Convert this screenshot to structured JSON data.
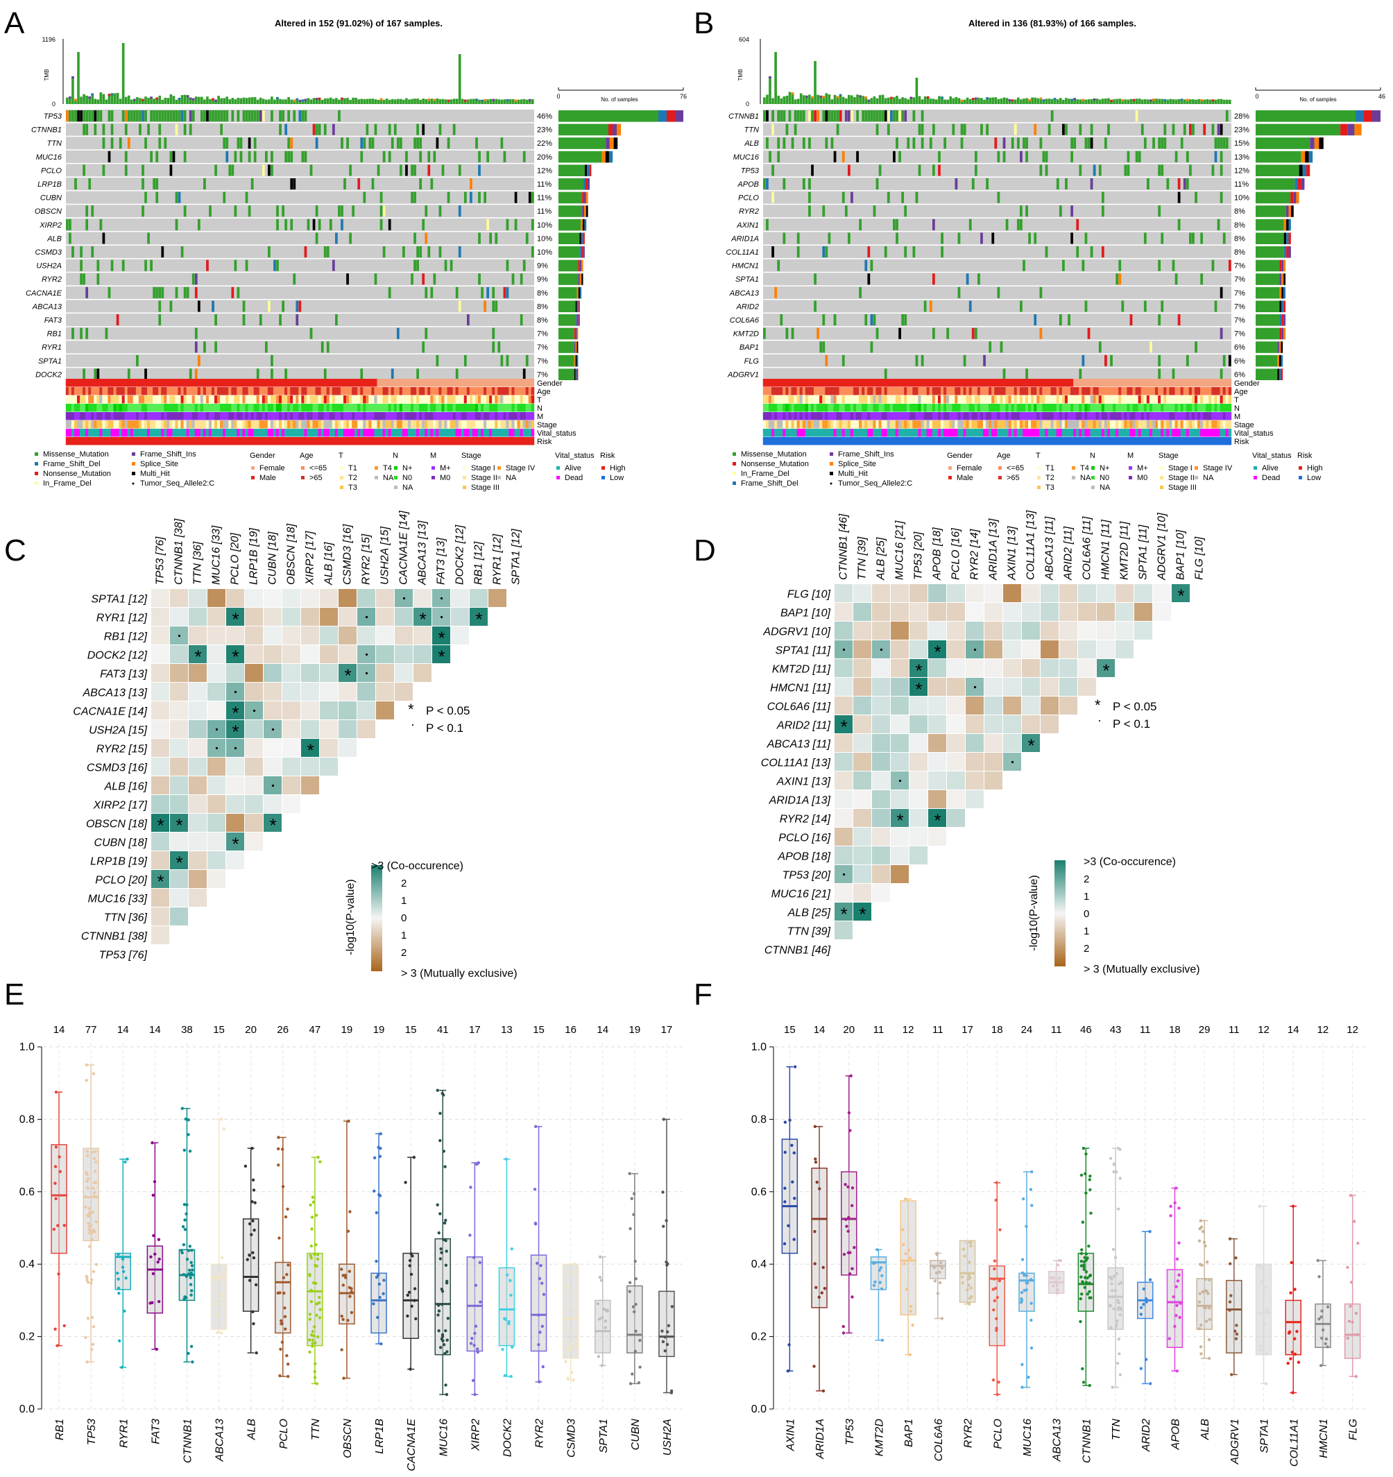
{
  "panels": {
    "A": {
      "letter": "A",
      "title": "Altered in 152 (91.02%) of 167 samples.",
      "tmb_label": "TMB",
      "tmb_max": "1196",
      "tmb_zero": "0",
      "n_samples": 167,
      "bar_axis_label": "No. of samples",
      "bar_axis_min": "0",
      "bar_axis_max": "76",
      "bar_max": 76,
      "genes": [
        {
          "name": "TP53",
          "pct": "46%",
          "n": 76
        },
        {
          "name": "CTNNB1",
          "pct": "23%",
          "n": 38
        },
        {
          "name": "TTN",
          "pct": "22%",
          "n": 36
        },
        {
          "name": "MUC16",
          "pct": "20%",
          "n": 33
        },
        {
          "name": "PCLO",
          "pct": "12%",
          "n": 20
        },
        {
          "name": "LRP1B",
          "pct": "11%",
          "n": 19
        },
        {
          "name": "CUBN",
          "pct": "11%",
          "n": 18
        },
        {
          "name": "OBSCN",
          "pct": "11%",
          "n": 18
        },
        {
          "name": "XIRP2",
          "pct": "10%",
          "n": 17
        },
        {
          "name": "ALB",
          "pct": "10%",
          "n": 16
        },
        {
          "name": "CSMD3",
          "pct": "10%",
          "n": 16
        },
        {
          "name": "USH2A",
          "pct": "9%",
          "n": 15
        },
        {
          "name": "RYR2",
          "pct": "9%",
          "n": 15
        },
        {
          "name": "CACNA1E",
          "pct": "8%",
          "n": 14
        },
        {
          "name": "ABCA13",
          "pct": "8%",
          "n": 13
        },
        {
          "name": "FAT3",
          "pct": "8%",
          "n": 13
        },
        {
          "name": "RB1",
          "pct": "7%",
          "n": 12
        },
        {
          "name": "RYR1",
          "pct": "7%",
          "n": 12
        },
        {
          "name": "SPTA1",
          "pct": "7%",
          "n": 12
        },
        {
          "name": "DOCK2",
          "pct": "7%",
          "n": 12
        }
      ],
      "annotations": [
        "Gender",
        "Age",
        "T",
        "N",
        "M",
        "Stage",
        "Vital_status",
        "Risk"
      ],
      "legend_mut": [
        "Missense_Mutation",
        "Frame_Shift_Del",
        "Nonsense_Mutation",
        "In_Frame_Del",
        "Frame_Shift_Ins",
        "Splice_Site",
        "Multi_Hit",
        "Tumor_Seq_Allele2:C"
      ]
    },
    "B": {
      "letter": "B",
      "title": "Altered in 136 (81.93%) of 166 samples.",
      "tmb_label": "TMB",
      "tmb_max": "604",
      "tmb_zero": "0",
      "n_samples": 166,
      "bar_axis_label": "No. of samples",
      "bar_axis_min": "0",
      "bar_axis_max": "46",
      "bar_max": 46,
      "genes": [
        {
          "name": "CTNNB1",
          "pct": "28%",
          "n": 46
        },
        {
          "name": "TTN",
          "pct": "23%",
          "n": 39
        },
        {
          "name": "ALB",
          "pct": "15%",
          "n": 25
        },
        {
          "name": "MUC16",
          "pct": "13%",
          "n": 21
        },
        {
          "name": "TP53",
          "pct": "12%",
          "n": 20
        },
        {
          "name": "APOB",
          "pct": "11%",
          "n": 18
        },
        {
          "name": "PCLO",
          "pct": "10%",
          "n": 16
        },
        {
          "name": "RYR2",
          "pct": "8%",
          "n": 14
        },
        {
          "name": "AXIN1",
          "pct": "8%",
          "n": 13
        },
        {
          "name": "ARID1A",
          "pct": "8%",
          "n": 13
        },
        {
          "name": "COL11A1",
          "pct": "8%",
          "n": 13
        },
        {
          "name": "HMCN1",
          "pct": "7%",
          "n": 11
        },
        {
          "name": "SPTA1",
          "pct": "7%",
          "n": 11
        },
        {
          "name": "ABCA13",
          "pct": "7%",
          "n": 11
        },
        {
          "name": "ARID2",
          "pct": "7%",
          "n": 11
        },
        {
          "name": "COL6A6",
          "pct": "7%",
          "n": 11
        },
        {
          "name": "KMT2D",
          "pct": "7%",
          "n": 11
        },
        {
          "name": "BAP1",
          "pct": "6%",
          "n": 10
        },
        {
          "name": "FLG",
          "pct": "6%",
          "n": 10
        },
        {
          "name": "ADGRV1",
          "pct": "6%",
          "n": 10
        }
      ],
      "annotations": [
        "Gender",
        "Age",
        "T",
        "N",
        "M",
        "Stage",
        "Vital_status",
        "Risk"
      ],
      "legend_mut": [
        "Missense_Mutation",
        "Nonsense_Mutation",
        "In_Frame_Del",
        "Frame_Shift_Del",
        "Frame_Shift_Ins",
        "Splice_Site",
        "Multi_Hit",
        "Tumor_Seq_Allele2:C"
      ]
    },
    "C": {
      "letter": "C",
      "genes": [
        "TP53 [76]",
        "CTNNB1 [38]",
        "TTN [36]",
        "MUC16 [33]",
        "PCLO [20]",
        "LRP1B [19]",
        "CUBN [18]",
        "OBSCN [18]",
        "XIRP2 [17]",
        "ALB [16]",
        "CSMD3 [16]",
        "RYR2 [15]",
        "USH2A [15]",
        "CACNA1E [14]",
        "ABCA13 [13]",
        "FAT3 [13]",
        "DOCK2 [12]",
        "RB1 [12]",
        "RYR1 [12]",
        "SPTA1 [12]"
      ],
      "legend_p05": "P < 0.05",
      "legend_p1": "P < 0.1",
      "scale_top": ">3 (Co-occurence)",
      "scale_bottom": "> 3 (Mutually exclusive)",
      "scale_axis": "-log10(P-value)",
      "scale_ticks": [
        "2",
        "1",
        "0",
        "1",
        "2"
      ]
    },
    "D": {
      "letter": "D",
      "genes": [
        "CTNNB1 [46]",
        "TTN [39]",
        "ALB [25]",
        "MUC16 [21]",
        "TP53 [20]",
        "APOB [18]",
        "PCLO [16]",
        "RYR2 [14]",
        "ARID1A [13]",
        "AXIN1 [13]",
        "COL11A1 [13]",
        "ABCA13 [11]",
        "ARID2 [11]",
        "COL6A6 [11]",
        "HMCN1 [11]",
        "KMT2D [11]",
        "SPTA1 [11]",
        "ADGRV1 [10]",
        "BAP1 [10]",
        "FLG [10]"
      ],
      "legend_p05": "P < 0.05",
      "legend_p1": "P < 0.1",
      "scale_top": ">3 (Co-occurence)",
      "scale_bottom": "> 3 (Mutually exclusive)",
      "scale_axis": "-log10(P-value)",
      "scale_ticks": [
        "2",
        "1",
        "0",
        "1",
        "2"
      ]
    },
    "E": {
      "letter": "E"
    },
    "F": {
      "letter": "F"
    }
  },
  "legend_headers": {
    "gender": "Gender",
    "age": "Age",
    "t": "T",
    "n": "N",
    "m": "M",
    "stage": "Stage",
    "vital": "Vital_status",
    "risk": "Risk"
  },
  "legend_items": {
    "gender": [
      "Female",
      "Male"
    ],
    "age": [
      "<=65",
      ">65"
    ],
    "t": [
      "T1",
      "T2",
      "T3",
      "T4",
      "NA"
    ],
    "n": [
      "N+",
      "N0",
      "NA"
    ],
    "m": [
      "M+",
      "M0"
    ],
    "stage": [
      "Stage I",
      "Stage II",
      "Stage III",
      "Stage IV",
      "NA"
    ],
    "vital": [
      "Alive",
      "Dead"
    ],
    "risk": [
      "High",
      "Low"
    ]
  },
  "colors": {
    "missense": "#33a02c",
    "frame_shift_del": "#1f78b4",
    "nonsense": "#e31a1c",
    "in_frame_del": "#ffff99",
    "frame_shift_ins": "#6a3d9a",
    "splice_site": "#ff7f00",
    "multi_hit": "#000000",
    "grey_cell": "#cccccc",
    "female": "#f4a582",
    "male": "#e8221a",
    "age_le65": "#fc8d59",
    "age_gt65": "#d73027",
    "t1": "#ffffcc",
    "t2": "#fed976",
    "t3": "#fd8d3c",
    "t4": "#e31a1c",
    "na": "#bdbdbd",
    "n_plus": "#00cc00",
    "n0": "#66ff66",
    "m_plus": "#9b30ff",
    "m0": "#7b2cbf",
    "alive": "#4ec6e0",
    "dead": "#ff00ff",
    "high": "#e8221a",
    "low": "#1e6fdc",
    "co_occ": "#1a7f6e",
    "mut_ex": "#a9651a"
  },
  "chart_data": [
    {
      "type": "heatmap",
      "panel": "C",
      "genes": [
        "TP53 [76]",
        "CTNNB1 [38]",
        "TTN [36]",
        "MUC16 [33]",
        "PCLO [20]",
        "LRP1B [19]",
        "CUBN [18]",
        "OBSCN [18]",
        "XIRP2 [17]",
        "ALB [16]",
        "CSMD3 [16]",
        "RYR2 [15]",
        "USH2A [15]",
        "CACNA1E [14]",
        "ABCA13 [13]",
        "FAT3 [13]",
        "DOCK2 [12]",
        "RB1 [12]",
        "RYR1 [12]",
        "SPTA1 [12]"
      ],
      "significant_p05": [
        [
          "PCLO [20]",
          "TP53 [76]"
        ],
        [
          "LRP1B [19]",
          "CTNNB1 [38]"
        ],
        [
          "CUBN [18]",
          "PCLO [20]"
        ],
        [
          "OBSCN [18]",
          "TP53 [76]"
        ],
        [
          "OBSCN [18]",
          "CTNNB1 [38]"
        ],
        [
          "OBSCN [18]",
          "CUBN [18]"
        ],
        [
          "RYR2 [15]",
          "XIRP2 [17]"
        ],
        [
          "USH2A [15]",
          "PCLO [20]"
        ],
        [
          "CACNA1E [14]",
          "PCLO [20]"
        ],
        [
          "FAT3 [13]",
          "CSMD3 [16]"
        ],
        [
          "DOCK2 [12]",
          "TTN [36]"
        ],
        [
          "DOCK2 [12]",
          "PCLO [20]"
        ],
        [
          "DOCK2 [12]",
          "FAT3 [13]"
        ],
        [
          "RB1 [12]",
          "FAT3 [13]"
        ],
        [
          "RYR1 [12]",
          "PCLO [20]"
        ],
        [
          "RYR1 [12]",
          "ABCA13 [13]"
        ],
        [
          "RYR1 [12]",
          "RB1 [12]"
        ]
      ],
      "significant_p1": [
        [
          "ABCA13 [13]",
          "PCLO [20]"
        ],
        [
          "CACNA1E [14]",
          "LRP1B [19]"
        ],
        [
          "USH2A [15]",
          "MUC16 [33]"
        ],
        [
          "USH2A [15]",
          "CUBN [18]"
        ],
        [
          "RYR2 [15]",
          "MUC16 [33]"
        ],
        [
          "RYR2 [15]",
          "PCLO [20]"
        ],
        [
          "ALB [16]",
          "CUBN [18]"
        ],
        [
          "RB1 [12]",
          "CTNNB1 [38]"
        ],
        [
          "DOCK2 [12]",
          "RYR2 [15]"
        ],
        [
          "FAT3 [13]",
          "RYR2 [15]"
        ],
        [
          "RYR1 [12]",
          "RYR2 [15]"
        ],
        [
          "RYR1 [12]",
          "FAT3 [13]"
        ],
        [
          "SPTA1 [12]",
          "CACNA1E [14]"
        ],
        [
          "SPTA1 [12]",
          "FAT3 [13]"
        ]
      ],
      "scale_range": [
        -3,
        3
      ]
    },
    {
      "type": "heatmap",
      "panel": "D",
      "genes": [
        "CTNNB1 [46]",
        "TTN [39]",
        "ALB [25]",
        "MUC16 [21]",
        "TP53 [20]",
        "APOB [18]",
        "PCLO [16]",
        "RYR2 [14]",
        "ARID1A [13]",
        "AXIN1 [13]",
        "COL11A1 [13]",
        "ABCA13 [11]",
        "ARID2 [11]",
        "COL6A6 [11]",
        "HMCN1 [11]",
        "KMT2D [11]",
        "SPTA1 [11]",
        "ADGRV1 [10]",
        "BAP1 [10]",
        "FLG [10]"
      ],
      "significant_p05": [
        [
          "FLG [10]",
          "BAP1 [10]"
        ],
        [
          "SPTA1 [11]",
          "APOB [18]"
        ],
        [
          "KMT2D [11]",
          "TP53 [20]"
        ],
        [
          "KMT2D [11]",
          "HMCN1 [11]"
        ],
        [
          "HMCN1 [11]",
          "TP53 [20]"
        ],
        [
          "ARID2 [11]",
          "CTNNB1 [46]"
        ],
        [
          "ABCA13 [11]",
          "COL11A1 [13]"
        ],
        [
          "RYR2 [14]",
          "MUC16 [21]"
        ],
        [
          "RYR2 [14]",
          "APOB [18]"
        ],
        [
          "ALB [25]",
          "CTNNB1 [46]"
        ],
        [
          "ALB [25]",
          "TTN [39]"
        ]
      ],
      "significant_p1": [
        [
          "SPTA1 [11]",
          "CTNNB1 [46]"
        ],
        [
          "SPTA1 [11]",
          "ALB [25]"
        ],
        [
          "SPTA1 [11]",
          "RYR2 [14]"
        ],
        [
          "HMCN1 [11]",
          "RYR2 [14]"
        ],
        [
          "AXIN1 [13]",
          "MUC16 [21]"
        ],
        [
          "AXIN1 [13]",
          "COL11A1 [13]"
        ],
        [
          "TP53 [20]",
          "CTNNB1 [46]"
        ]
      ],
      "scale_range": [
        -3,
        3
      ]
    },
    {
      "type": "box",
      "panel": "E",
      "ylim": [
        0,
        1.0
      ],
      "y_ticks": [
        "0.0",
        "0.2",
        "0.4",
        "0.6",
        "0.8",
        "1.0"
      ],
      "categories": [
        "RB1",
        "TP53",
        "RYR1",
        "FAT3",
        "CTNNB1",
        "ABCA13",
        "ALB",
        "PCLO",
        "TTN",
        "OBSCN",
        "LRP1B",
        "CACNA1E",
        "MUC16",
        "XIRP2",
        "DOCK2",
        "RYR2",
        "CSMD3",
        "SPTA1",
        "CUBN",
        "USH2A"
      ],
      "counts": [
        14,
        77,
        14,
        14,
        38,
        15,
        20,
        26,
        47,
        19,
        19,
        15,
        41,
        17,
        13,
        15,
        16,
        14,
        19,
        17
      ],
      "median": [
        0.59,
        0.585,
        0.42,
        0.385,
        0.37,
        0.365,
        0.365,
        0.35,
        0.325,
        0.32,
        0.3,
        0.3,
        0.29,
        0.285,
        0.275,
        0.26,
        0.25,
        0.215,
        0.205,
        0.2
      ],
      "q1": [
        0.43,
        0.465,
        0.33,
        0.265,
        0.3,
        0.22,
        0.27,
        0.21,
        0.175,
        0.235,
        0.21,
        0.195,
        0.15,
        0.16,
        0.175,
        0.16,
        0.14,
        0.155,
        0.155,
        0.145
      ],
      "q3": [
        0.73,
        0.72,
        0.43,
        0.45,
        0.44,
        0.4,
        0.525,
        0.405,
        0.43,
        0.4,
        0.375,
        0.43,
        0.47,
        0.42,
        0.39,
        0.425,
        0.4,
        0.3,
        0.34,
        0.325
      ],
      "min": [
        0.175,
        0.13,
        0.115,
        0.165,
        0.13,
        0.21,
        0.155,
        0.09,
        0.07,
        0.085,
        0.18,
        0.11,
        0.04,
        0.04,
        0.09,
        0.075,
        0.08,
        0.12,
        0.07,
        0.045
      ],
      "max": [
        0.875,
        0.95,
        0.69,
        0.735,
        0.83,
        0.8,
        0.72,
        0.75,
        0.695,
        0.795,
        0.76,
        0.695,
        0.88,
        0.68,
        0.69,
        0.78,
        0.4,
        0.42,
        0.65,
        0.8
      ],
      "colors": [
        "#e8443a",
        "#e8c9a8",
        "#16b3c0",
        "#8b0a8b",
        "#0c8b8b",
        "#f3e4c5",
        "#333333",
        "#a0582a",
        "#9ad11a",
        "#a0582a",
        "#3b74c8",
        "#333333",
        "#2a4f4a",
        "#7b6ad9",
        "#3fd1e0",
        "#7b6ad9",
        "#f3e4c5",
        "#bfbfbf",
        "#7f7f7f",
        "#555555"
      ]
    },
    {
      "type": "box",
      "panel": "F",
      "ylim": [
        0,
        1.0
      ],
      "y_ticks": [
        "0.0",
        "0.2",
        "0.4",
        "0.6",
        "0.8",
        "1.0"
      ],
      "categories": [
        "AXIN1",
        "ARID1A",
        "TP53",
        "KMT2D",
        "BAP1",
        "COL6A6",
        "RYR2",
        "PCLO",
        "MUC16",
        "ABCA13",
        "CTNNB1",
        "TTN",
        "ARID2",
        "APOB",
        "ALB",
        "ADGRV1",
        "SPTA1",
        "COL11A1",
        "HMCN1",
        "FLG"
      ],
      "counts": [
        15,
        14,
        20,
        11,
        12,
        11,
        17,
        18,
        24,
        11,
        46,
        43,
        11,
        18,
        29,
        11,
        12,
        14,
        12,
        12
      ],
      "median": [
        0.56,
        0.525,
        0.525,
        0.405,
        0.41,
        0.395,
        0.375,
        0.36,
        0.355,
        0.35,
        0.345,
        0.31,
        0.3,
        0.295,
        0.285,
        0.275,
        0.265,
        0.24,
        0.235,
        0.205
      ],
      "q1": [
        0.43,
        0.28,
        0.37,
        0.33,
        0.26,
        0.36,
        0.295,
        0.175,
        0.27,
        0.32,
        0.27,
        0.22,
        0.25,
        0.17,
        0.22,
        0.155,
        0.15,
        0.15,
        0.17,
        0.14
      ],
      "q3": [
        0.745,
        0.665,
        0.655,
        0.42,
        0.575,
        0.41,
        0.465,
        0.395,
        0.375,
        0.38,
        0.43,
        0.39,
        0.35,
        0.385,
        0.36,
        0.355,
        0.4,
        0.3,
        0.29,
        0.29
      ],
      "min": [
        0.105,
        0.05,
        0.21,
        0.19,
        0.15,
        0.25,
        0.29,
        0.04,
        0.06,
        0.32,
        0.065,
        0.06,
        0.07,
        0.105,
        0.14,
        0.095,
        0.07,
        0.045,
        0.12,
        0.09
      ],
      "max": [
        0.945,
        0.78,
        0.92,
        0.44,
        0.58,
        0.43,
        0.46,
        0.625,
        0.655,
        0.41,
        0.72,
        0.72,
        0.49,
        0.61,
        0.52,
        0.47,
        0.56,
        0.56,
        0.41,
        0.59
      ],
      "colors": [
        "#2a48a8",
        "#8b3a2a",
        "#a0208a",
        "#5aaee0",
        "#f2c58a",
        "#c8b8a8",
        "#d8c49a",
        "#f05a4a",
        "#5aaee0",
        "#e0c8d0",
        "#1a8b2a",
        "#c8c8c8",
        "#3a8ae0",
        "#e040e0",
        "#c8b49a",
        "#8b5a3a",
        "#dcdcdc",
        "#e8221a",
        "#8a8a8a",
        "#e09aa8"
      ]
    }
  ]
}
